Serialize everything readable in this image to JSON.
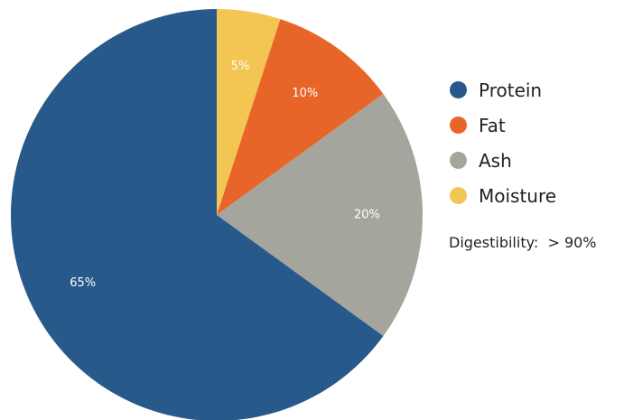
{
  "chart_data": {
    "type": "pie",
    "categories": [
      "Protein",
      "Fat",
      "Ash",
      "Moisture"
    ],
    "values": [
      65,
      10,
      20,
      5
    ],
    "data_labels": [
      "65%",
      "10%",
      "20%",
      "5%"
    ],
    "colors": {
      "Protein": "#275a8a",
      "Fat": "#e8652a",
      "Ash": "#a6a59d",
      "Moisture": "#f3c553"
    },
    "start": "top",
    "direction": "clockwise",
    "draw_order": [
      "Moisture",
      "Fat",
      "Ash",
      "Protein"
    ],
    "legend_position": "right",
    "legend": [
      "Protein",
      "Fat",
      "Ash",
      "Moisture"
    ],
    "annotation": "Digestibility:  > 90%"
  }
}
